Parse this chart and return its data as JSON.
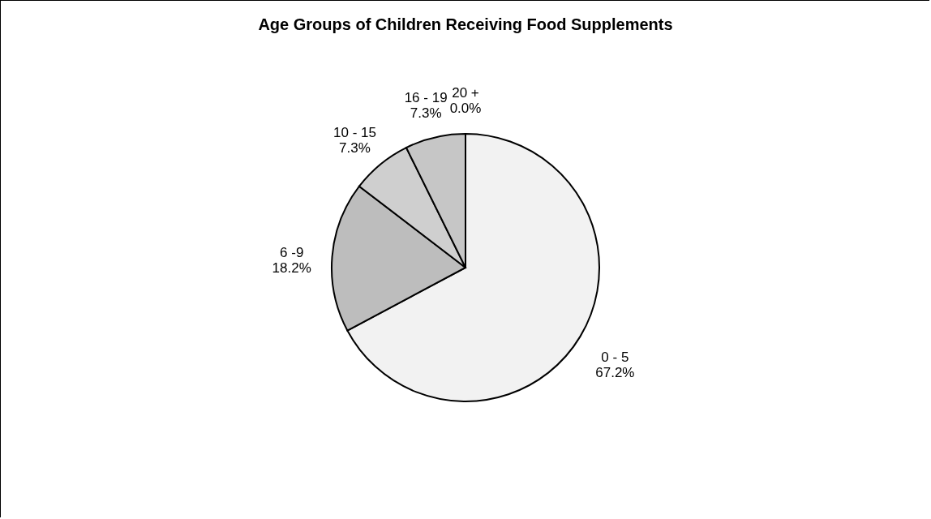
{
  "chart_data": {
    "type": "pie",
    "title": "Age Groups of Children Receiving Food Supplements",
    "categories": [
      "0 - 5",
      "6 -9",
      "10 - 15",
      "16 - 19",
      "20 +"
    ],
    "values": [
      67.2,
      18.2,
      7.3,
      7.3,
      0.0
    ],
    "value_labels": [
      "67.2%",
      "18.2%",
      "7.3%",
      "7.3%",
      "0.0%"
    ],
    "colors": [
      "#f2f2f2",
      "#bdbdbd",
      "#cfcfcf",
      "#c6c6c6",
      "#ffffff"
    ],
    "legend": false
  }
}
